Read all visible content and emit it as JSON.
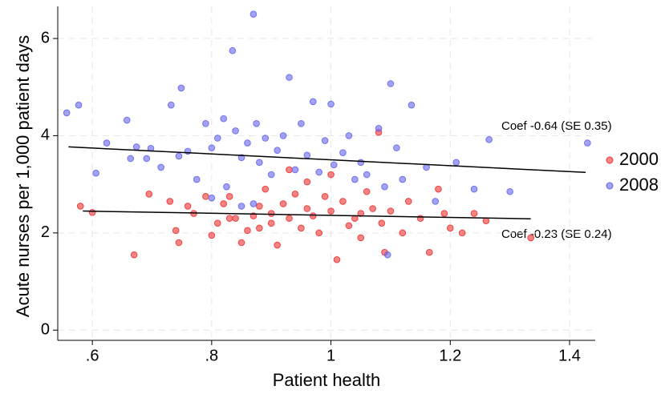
{
  "chart_data": {
    "type": "scatter",
    "xlabel": "Patient health",
    "ylabel": "Acute nurses per 1,000 patient days",
    "xlim": [
      0.542,
      1.443
    ],
    "ylim": [
      -0.21,
      6.66
    ],
    "xticks": [
      {
        "value": 0.6,
        "label": ".6"
      },
      {
        "value": 0.8,
        "label": ".8"
      },
      1,
      1.2,
      1.4
    ],
    "yticks": [
      0,
      2,
      4,
      6
    ],
    "grid": true,
    "legend": "right",
    "series": [
      {
        "name": "2000",
        "color": "#ee3333",
        "x": [
          0.58,
          0.6,
          0.67,
          0.695,
          0.74,
          0.745,
          0.76,
          0.79,
          0.8,
          0.81,
          0.82,
          0.83,
          0.84,
          0.85,
          0.86,
          0.87,
          0.88,
          0.89,
          0.9,
          0.91,
          0.92,
          0.93,
          0.94,
          0.95,
          0.96,
          0.97,
          0.98,
          0.99,
          1.0,
          1.01,
          1.02,
          1.03,
          1.04,
          1.05,
          1.06,
          1.07,
          1.08,
          1.085,
          1.09,
          1.1,
          1.12,
          1.13,
          1.15,
          1.165,
          1.18,
          1.19,
          1.2,
          1.22,
          1.24,
          1.26,
          1.335,
          0.93,
          0.96,
          1.0,
          0.88,
          0.9,
          1.05,
          0.83,
          0.73,
          0.77
        ],
        "values": [
          2.55,
          2.42,
          1.55,
          2.8,
          2.05,
          1.8,
          2.55,
          2.75,
          1.95,
          2.2,
          2.6,
          2.75,
          2.3,
          1.8,
          2.05,
          2.35,
          2.1,
          2.9,
          2.4,
          1.75,
          2.6,
          2.3,
          2.8,
          2.1,
          2.5,
          2.35,
          2.0,
          2.75,
          2.45,
          1.45,
          2.65,
          2.15,
          2.3,
          1.9,
          2.85,
          2.5,
          4.07,
          2.2,
          1.6,
          2.45,
          2.0,
          2.65,
          2.3,
          1.6,
          2.9,
          2.4,
          2.1,
          2.0,
          2.4,
          2.25,
          1.9,
          3.3,
          3.05,
          3.2,
          2.55,
          2.2,
          2.4,
          2.3,
          2.65,
          2.4
        ],
        "fit": {
          "x": [
            0.584,
            1.335
          ],
          "y": [
            2.45,
            2.29
          ]
        }
      },
      {
        "name": "2008",
        "color": "#6666ee",
        "x": [
          0.557,
          0.577,
          0.606,
          0.624,
          0.658,
          0.664,
          0.674,
          0.691,
          0.698,
          0.715,
          0.732,
          0.745,
          0.749,
          0.76,
          0.775,
          0.79,
          0.8,
          0.81,
          0.82,
          0.825,
          0.835,
          0.84,
          0.85,
          0.86,
          0.87,
          0.875,
          0.88,
          0.89,
          0.9,
          0.91,
          0.92,
          0.93,
          0.94,
          0.95,
          0.96,
          0.97,
          0.98,
          0.99,
          1.0,
          1.005,
          1.02,
          1.03,
          1.04,
          1.05,
          1.06,
          1.08,
          1.09,
          1.1,
          1.11,
          1.12,
          1.135,
          1.16,
          1.175,
          1.21,
          1.24,
          1.265,
          1.3,
          1.43,
          1.095,
          0.85,
          0.8,
          0.87
        ],
        "values": [
          4.47,
          4.63,
          3.23,
          3.85,
          4.32,
          3.53,
          3.77,
          3.53,
          3.74,
          3.35,
          4.63,
          3.58,
          4.98,
          3.68,
          3.1,
          4.25,
          3.75,
          3.95,
          4.35,
          2.95,
          5.75,
          4.1,
          3.55,
          3.85,
          6.5,
          4.25,
          3.45,
          3.95,
          3.2,
          3.7,
          4.0,
          5.2,
          3.3,
          4.25,
          3.6,
          4.7,
          3.25,
          3.9,
          4.65,
          3.4,
          3.65,
          4.0,
          3.1,
          3.45,
          3.2,
          4.15,
          2.95,
          5.07,
          3.75,
          3.1,
          4.63,
          3.35,
          2.65,
          3.45,
          2.9,
          3.92,
          2.85,
          3.85,
          1.55,
          2.55,
          2.72,
          2.6
        ],
        "fit": {
          "x": [
            0.56,
            1.427
          ],
          "y": [
            3.77,
            3.245
          ]
        }
      }
    ],
    "annotations": [
      {
        "text": "Coef -0.64 (SE 0.35)"
      },
      {
        "text": "Coef -0.23 (SE 0.24)"
      }
    ]
  }
}
